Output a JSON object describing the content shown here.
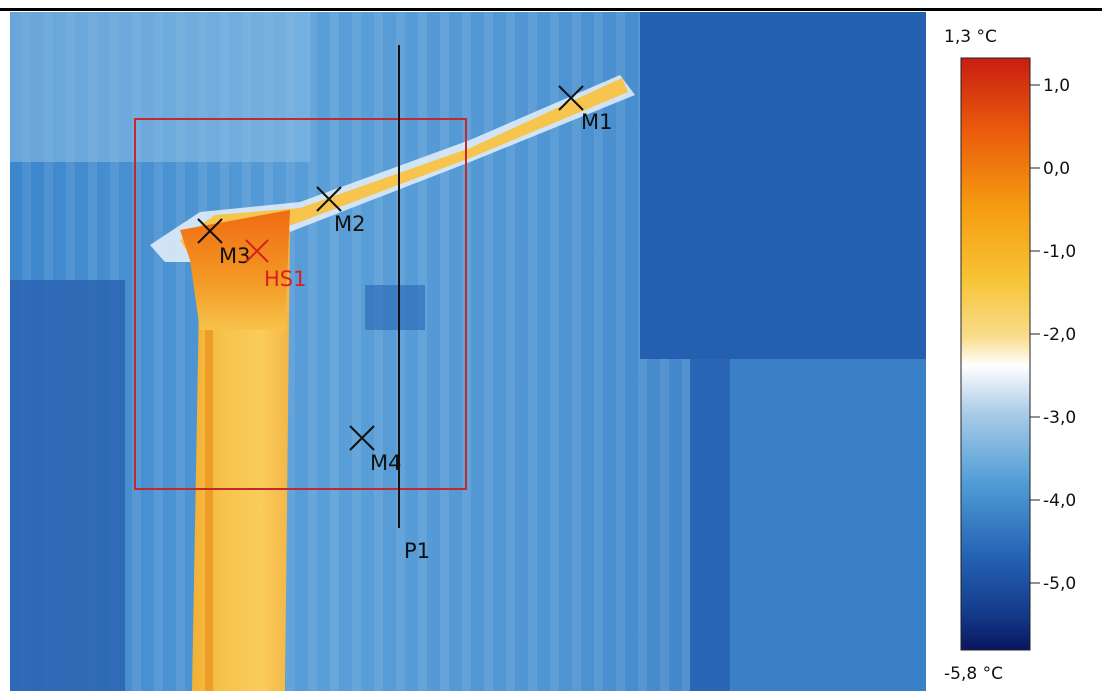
{
  "thermogram": {
    "markers": [
      {
        "id": "M1"
      },
      {
        "id": "M2"
      },
      {
        "id": "M3"
      },
      {
        "id": "M4"
      }
    ],
    "hotspot": {
      "id": "HS1",
      "color": "#d62020"
    },
    "profile_line": {
      "id": "P1"
    },
    "region_box_color": "#c02a2a"
  },
  "scale": {
    "max_label": "1,3 °C",
    "min_label": "-5,8 °C",
    "ticks": [
      "1,0",
      "0,0",
      "-1,0",
      "-2,0",
      "-3,0",
      "-4,0",
      "-5,0"
    ],
    "colors": {
      "hot": "#d02010",
      "warm": "#f08a10",
      "mid_warm": "#f6c64a",
      "neutral": "#ffffff",
      "cool": "#7fb6df",
      "cold": "#2a6fbd",
      "coldest": "#0a1a6e"
    }
  }
}
